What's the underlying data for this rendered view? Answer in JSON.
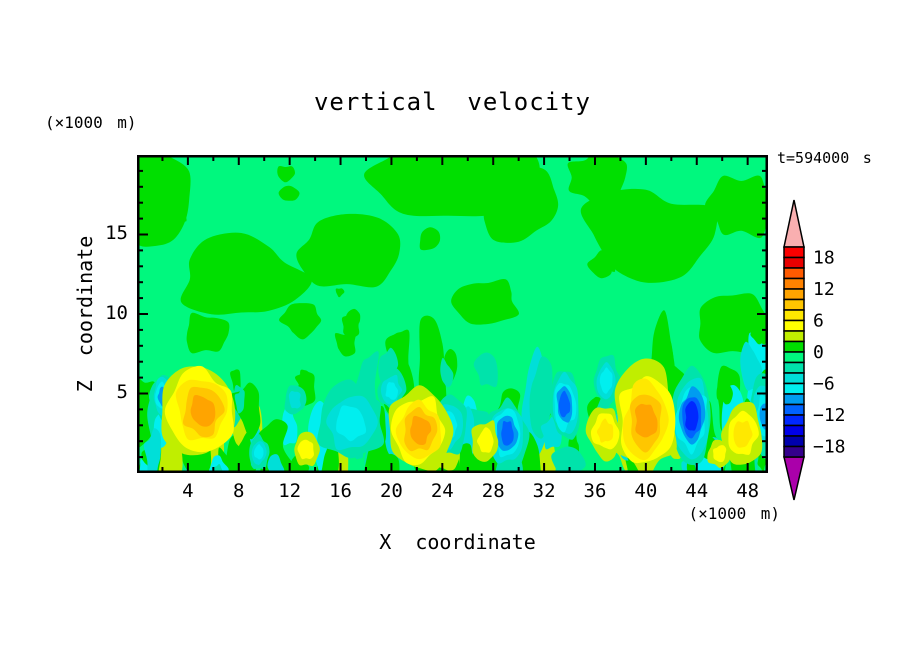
{
  "chart_data": {
    "type": "heatmap",
    "title": "vertical velocity",
    "time_label": "t=594000 s",
    "xlabel": "X coordinate",
    "ylabel": "Z coordinate",
    "x_unit": "(×1000 m)",
    "y_unit": "(×1000 m)",
    "xlim": [
      0,
      49.6
    ],
    "ylim": [
      0,
      20
    ],
    "x_tick_labels": [
      4,
      8,
      12,
      16,
      20,
      24,
      28,
      32,
      36,
      40,
      44,
      48
    ],
    "x_minor_step": 2,
    "y_tick_labels": [
      5,
      10,
      15
    ],
    "y_minor_step": 1,
    "grid": false,
    "colorbar": {
      "position": "right",
      "range": [
        -20,
        20
      ],
      "segment_size": 2,
      "labels": [
        18,
        12,
        6,
        0,
        -6,
        -12,
        -18
      ],
      "colors_top_to_bottom": [
        "#FB0000",
        "#E90000",
        "#FF5A00",
        "#FF8200",
        "#FFA400",
        "#FFC600",
        "#FFE800",
        "#FFFF00",
        "#C0EE00",
        "#00DF00",
        "#00F87E",
        "#00E3AB",
        "#00DFD8",
        "#00EFEF",
        "#009CF0",
        "#0063FF",
        "#0028FF",
        "#0000E8",
        "#0000AC",
        "#34008C"
      ],
      "over_arrow_color": "#F9AFB0",
      "under_arrow_color": "#AA00AA"
    },
    "field": {
      "background_band": [
        -2,
        0
      ],
      "background_color": "#00F87E",
      "positive_patch_color": "#00DF00",
      "upper_positive_patches": [
        {
          "x": 1.5,
          "z": 17.3,
          "rx": 2.6,
          "rz": 2.9
        },
        {
          "x": 8.2,
          "z": 12.2,
          "rx": 4.8,
          "rz": 2.6
        },
        {
          "x": 16.5,
          "z": 13.8,
          "rx": 4.2,
          "rz": 2.2
        },
        {
          "x": 24.5,
          "z": 18.8,
          "rx": 6.5,
          "rz": 2.6
        },
        {
          "x": 30.0,
          "z": 16.8,
          "rx": 3.4,
          "rz": 2.2
        },
        {
          "x": 40.0,
          "z": 15.0,
          "rx": 5.0,
          "rz": 2.8
        },
        {
          "x": 36.2,
          "z": 18.6,
          "rx": 2.4,
          "rz": 1.6
        },
        {
          "x": 47.5,
          "z": 16.8,
          "rx": 2.6,
          "rz": 2.0
        },
        {
          "x": 27.6,
          "z": 10.8,
          "rx": 2.4,
          "rz": 1.4
        },
        {
          "x": 46.8,
          "z": 9.4,
          "rx": 2.6,
          "rz": 1.8
        },
        {
          "x": 5.4,
          "z": 8.8,
          "rx": 1.8,
          "rz": 1.2
        },
        {
          "x": 13.0,
          "z": 9.6,
          "rx": 1.6,
          "rz": 1.0
        }
      ],
      "updraft_cores": [
        {
          "x": 5.1,
          "z": 3.9,
          "rx": 3.0,
          "rz": 2.9,
          "peak": 10
        },
        {
          "x": 22.2,
          "z": 2.7,
          "rx": 2.4,
          "rz": 2.6,
          "peak": 10
        },
        {
          "x": 40.0,
          "z": 3.3,
          "rx": 2.5,
          "rz": 3.4,
          "peak": 10
        },
        {
          "x": 47.6,
          "z": 2.4,
          "rx": 1.5,
          "rz": 1.9,
          "peak": 6
        },
        {
          "x": 36.8,
          "z": 2.6,
          "rx": 1.3,
          "rz": 1.6,
          "peak": 6
        },
        {
          "x": 27.4,
          "z": 2.0,
          "rx": 1.1,
          "rz": 1.3,
          "peak": 4
        },
        {
          "x": 13.3,
          "z": 1.5,
          "rx": 1.0,
          "rz": 1.1,
          "peak": 4
        },
        {
          "x": 45.8,
          "z": 1.2,
          "rx": 0.9,
          "rz": 0.9,
          "peak": 4
        }
      ],
      "downdraft_cores": [
        {
          "x": 29.1,
          "z": 2.5,
          "rx": 1.5,
          "rz": 2.2,
          "peak": -11
        },
        {
          "x": 43.6,
          "z": 3.5,
          "rx": 1.6,
          "rz": 2.8,
          "peak": -12
        },
        {
          "x": 33.6,
          "z": 4.3,
          "rx": 1.2,
          "rz": 2.2,
          "peak": -10
        },
        {
          "x": 2.0,
          "z": 4.8,
          "rx": 0.9,
          "rz": 1.4,
          "peak": -9
        },
        {
          "x": 16.8,
          "z": 3.2,
          "rx": 2.6,
          "rz": 2.4,
          "peak": -6
        },
        {
          "x": 24.6,
          "z": 3.0,
          "rx": 1.3,
          "rz": 1.8,
          "peak": -6
        },
        {
          "x": 49.4,
          "z": 3.6,
          "rx": 1.2,
          "rz": 2.4,
          "peak": -8
        },
        {
          "x": 9.6,
          "z": 1.3,
          "rx": 0.8,
          "rz": 1.0,
          "peak": -6
        },
        {
          "x": 36.9,
          "z": 5.8,
          "rx": 1.0,
          "rz": 1.6,
          "peak": -6
        },
        {
          "x": 12.4,
          "z": 4.6,
          "rx": 0.8,
          "rz": 1.0,
          "peak": -4
        },
        {
          "x": 20.0,
          "z": 5.2,
          "rx": 1.0,
          "rz": 1.3,
          "peak": -6
        }
      ]
    }
  }
}
